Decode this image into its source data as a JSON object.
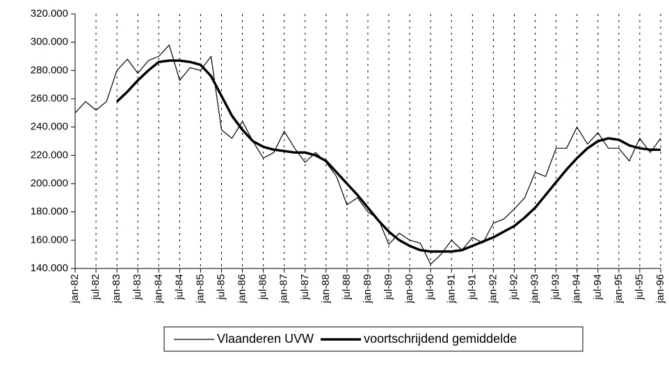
{
  "chart_data": {
    "type": "line",
    "categories": [
      "jan-82",
      null,
      "jul-82",
      null,
      "jan-83",
      null,
      "jul-83",
      null,
      "jan-84",
      null,
      "jul-84",
      null,
      "jan-85",
      null,
      "jul-85",
      null,
      "jan-86",
      null,
      "jul-86",
      null,
      "jan-87",
      null,
      "jul-87",
      null,
      "jan-88",
      null,
      "jul-88",
      null,
      "jan-89",
      null,
      "jul-89",
      null,
      "jan-90",
      null,
      "jul-90",
      null,
      "jan-91",
      null,
      "jul-91",
      null,
      "jan-92",
      null,
      "jul-92",
      null,
      "jan-93",
      null,
      "jul-93",
      null,
      "jan-94",
      null,
      "jul-94",
      null,
      "jan-95",
      null,
      "jul-95",
      null,
      "jan-96"
    ],
    "series": [
      {
        "name": "Vlaanderen UVW",
        "color": "#000000",
        "width": 1.2,
        "values": [
          250000,
          258000,
          252000,
          258000,
          280000,
          288000,
          278000,
          287000,
          290000,
          298000,
          273000,
          282000,
          280000,
          290000,
          238000,
          232000,
          244000,
          230000,
          218000,
          222000,
          237000,
          225000,
          215000,
          222000,
          215000,
          205000,
          185000,
          190000,
          180000,
          175000,
          157000,
          165000,
          160000,
          158000,
          143000,
          150000,
          160000,
          153000,
          162000,
          158000,
          172000,
          175000,
          182000,
          190000,
          208000,
          205000,
          225000,
          225000,
          240000,
          228000,
          236000,
          225000,
          225000,
          216000,
          232000,
          222000,
          232000
        ]
      },
      {
        "name": "voortschrijdend gemiddelde",
        "color": "#000000",
        "width": 3.5,
        "values": [
          null,
          null,
          null,
          null,
          258000,
          265000,
          273000,
          280000,
          286000,
          287000,
          287000,
          286000,
          284000,
          276000,
          262000,
          248000,
          238000,
          230000,
          226000,
          224000,
          223000,
          222000,
          222000,
          220000,
          216000,
          208000,
          200000,
          192000,
          183000,
          174000,
          166000,
          160000,
          156000,
          153000,
          152000,
          152000,
          152000,
          153000,
          156000,
          159000,
          162000,
          166000,
          170000,
          176000,
          183000,
          192000,
          201000,
          210000,
          218000,
          225000,
          230000,
          232000,
          231000,
          227000,
          225000,
          224000,
          224000
        ]
      }
    ],
    "ylim": [
      140000,
      320000
    ],
    "yticks": [
      {
        "value": 140000,
        "label": "140.000"
      },
      {
        "value": 160000,
        "label": "160.000"
      },
      {
        "value": 180000,
        "label": "180.000"
      },
      {
        "value": 200000,
        "label": "200.000"
      },
      {
        "value": 220000,
        "label": "220.000"
      },
      {
        "value": 240000,
        "label": "240.000"
      },
      {
        "value": 260000,
        "label": "260.000"
      },
      {
        "value": 280000,
        "label": "280.000"
      },
      {
        "value": 300000,
        "label": "300.000"
      },
      {
        "value": 320000,
        "label": "320.000"
      }
    ],
    "grid": true,
    "legend": "bottom"
  }
}
